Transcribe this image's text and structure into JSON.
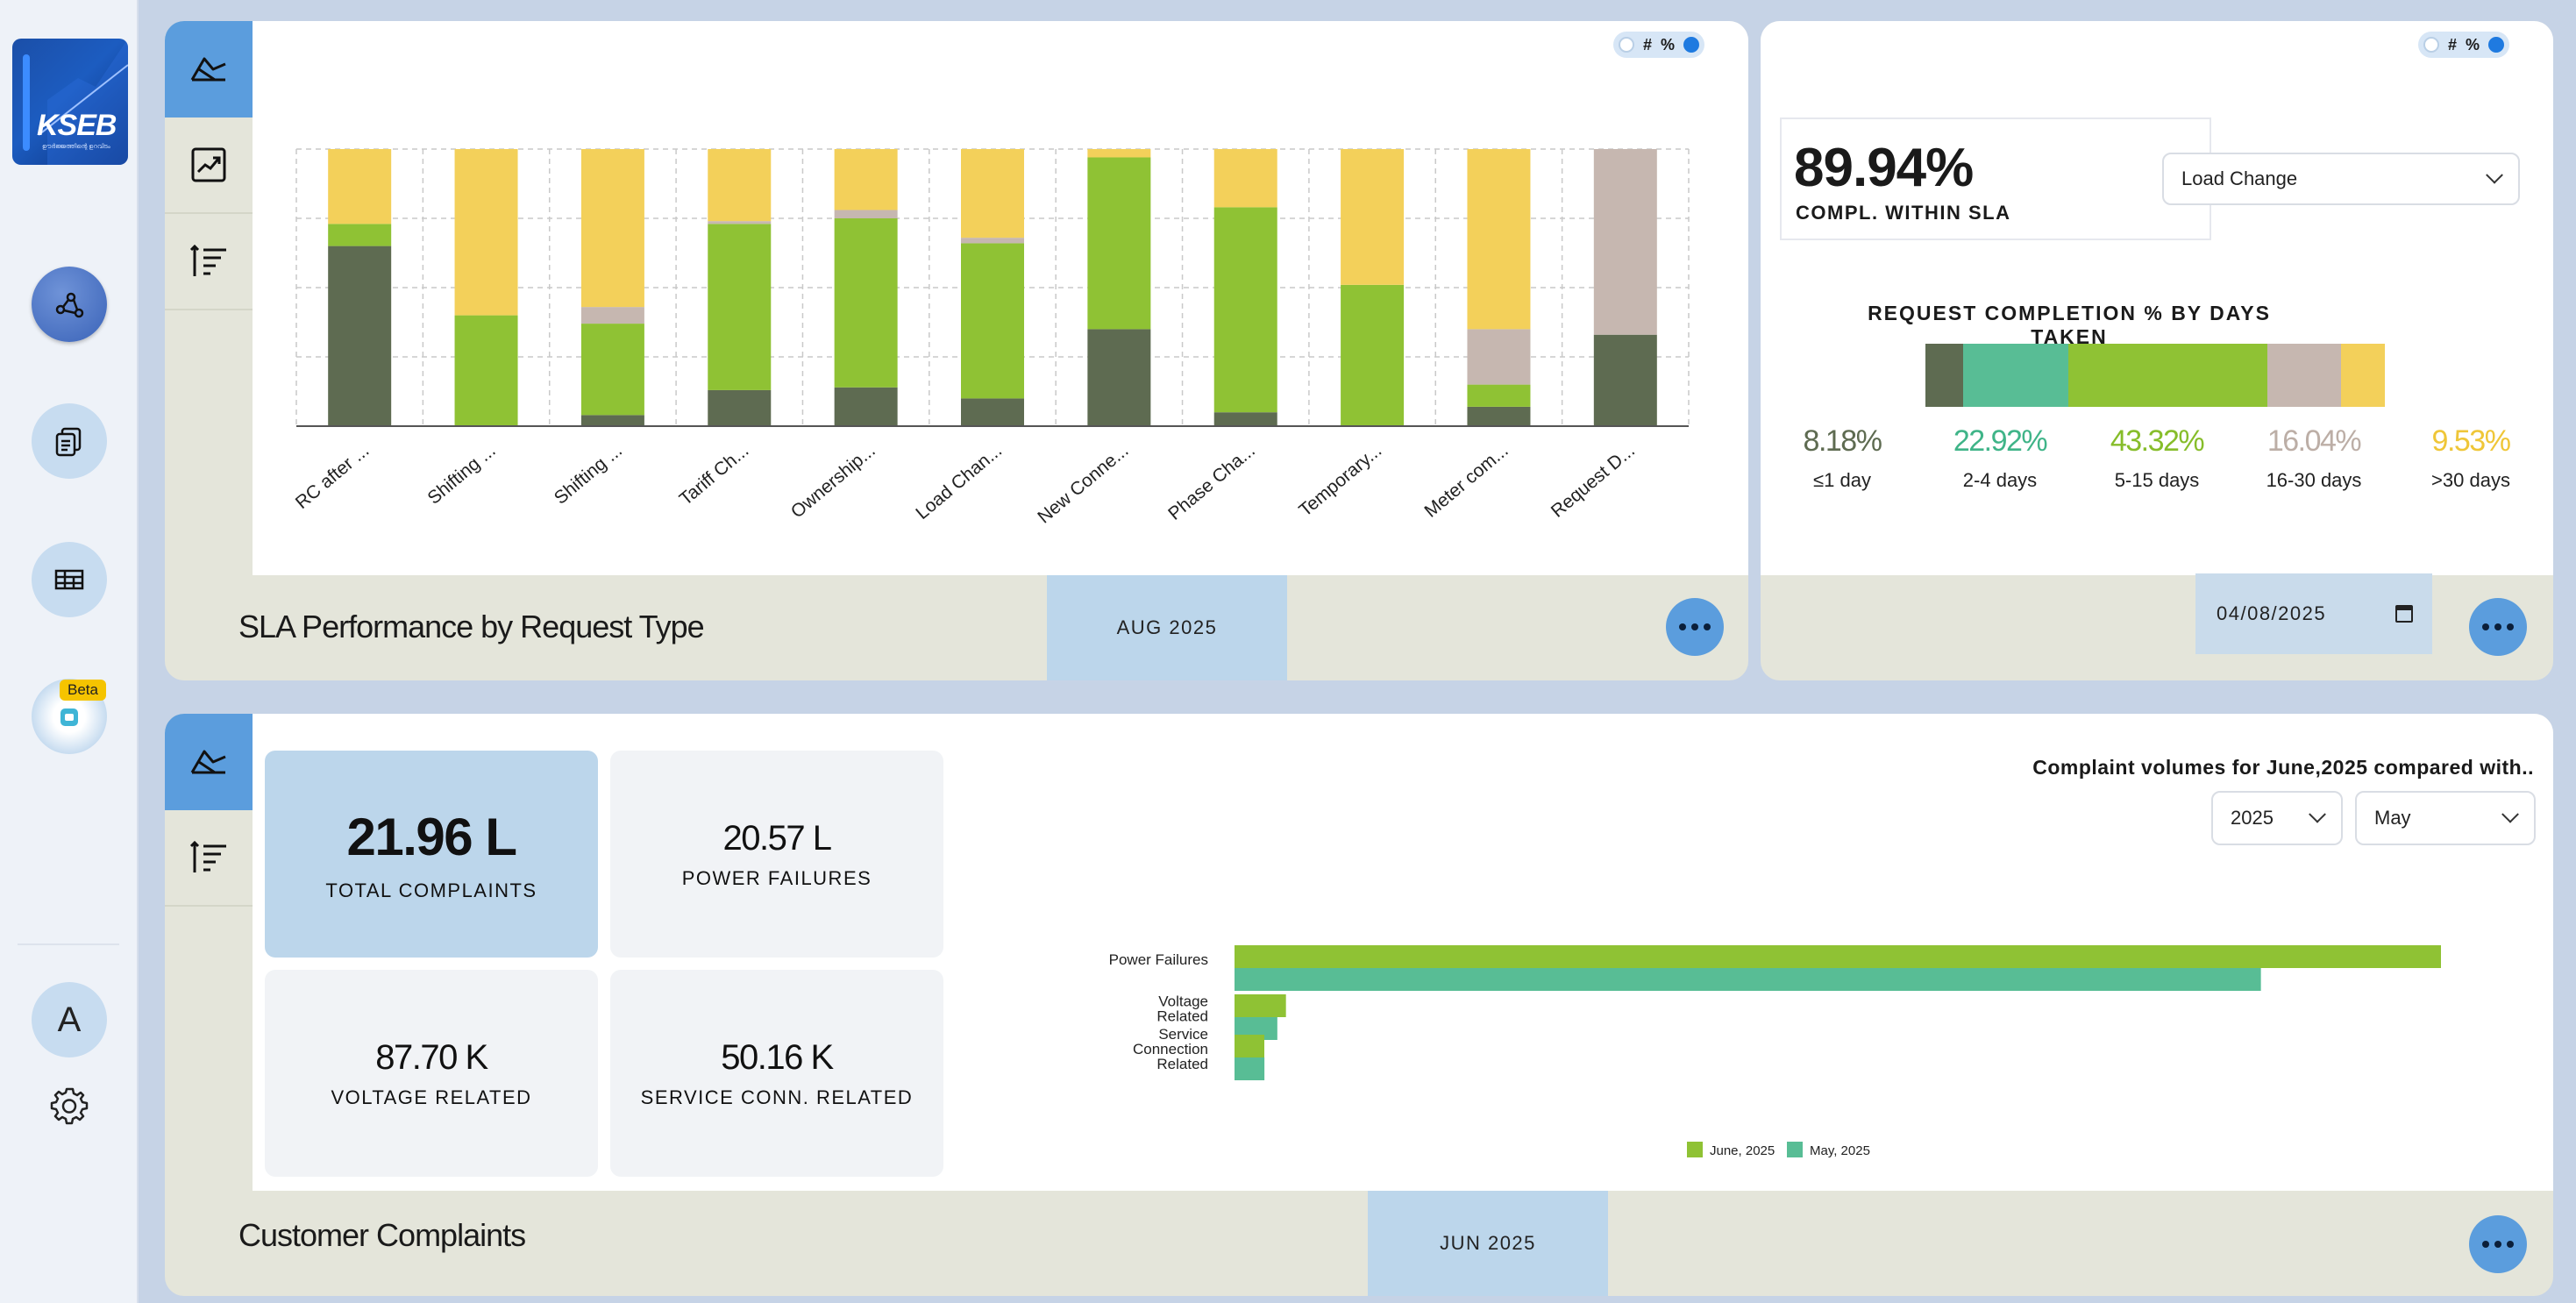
{
  "sidebar": {
    "logo_text": "KSEB",
    "logo_subtext": "ഊർജ്ജത്തിന്റെ ഉറവിടം",
    "items": [
      {
        "icon": "workflow-icon",
        "active": true
      },
      {
        "icon": "clipboard-copy-icon",
        "active": false
      },
      {
        "icon": "table-layers-icon",
        "active": false
      },
      {
        "icon": "ai-bot-icon",
        "active": false,
        "badge": "Beta"
      }
    ],
    "avatar_initial": "A",
    "settings_icon": "gear-icon"
  },
  "sla_request_type": {
    "title": "SLA Performance by Request Type",
    "period": "AUG 2025",
    "toggle": {
      "left": "#",
      "right": "%",
      "selected": "%"
    },
    "tools": [
      "chart-type-icon",
      "trend-icon",
      "sort-list-icon"
    ]
  },
  "sla_completion": {
    "value": "89.94%",
    "label": "COMPL. WITHIN SLA",
    "request_type_select": "Load Change",
    "toggle": {
      "left": "#",
      "right": "%",
      "selected": "%"
    },
    "days_title": "REQUEST COMPLETION % BY DAYS TAKEN",
    "buckets": [
      {
        "pct": "8.18%",
        "label": "≤1 day",
        "value": 8.18,
        "color": "#5e6b51"
      },
      {
        "pct": "22.92%",
        "label": "2-4 days",
        "value": 22.92,
        "color": "#58bd95"
      },
      {
        "pct": "43.32%",
        "label": "5-15 days",
        "value": 43.32,
        "color": "#8fc234"
      },
      {
        "pct": "16.04%",
        "label": "16-30 days",
        "value": 16.04,
        "color": "#c6b7b0"
      },
      {
        "pct": "9.53%",
        "label": ">30 days",
        "value": 9.53,
        "color": "#f3d05a"
      }
    ],
    "date": "04/08/2025"
  },
  "complaints": {
    "title": "Customer Complaints",
    "period": "JUN 2025",
    "tools": [
      "chart-type-icon",
      "sort-list-icon"
    ],
    "kpis": {
      "total": {
        "value": "21.96 L",
        "caption": "TOTAL COMPLAINTS"
      },
      "power": {
        "value": "20.57 L",
        "caption": "POWER FAILURES"
      },
      "voltage": {
        "value": "87.70 K",
        "caption": "VOLTAGE RELATED"
      },
      "service": {
        "value": "50.16 K",
        "caption": "SERVICE CONN. RELATED"
      }
    },
    "compare_title": "Complaint volumes for June,2025 compared with..",
    "year_select": "2025",
    "month_select": "May"
  },
  "chart_data": [
    {
      "type": "bar",
      "stacked": true,
      "percent": true,
      "categories": [
        "RC after ...",
        "Shifting ...",
        "Shifting ...",
        "Tariff Ch...",
        "Ownership...",
        "Load Chan...",
        "New Conne...",
        "Phase Cha...",
        "Temporary...",
        "Meter com...",
        "Request D..."
      ],
      "series": [
        {
          "color": "#5e6b51",
          "values": [
            65,
            0,
            4,
            13,
            14,
            10,
            35,
            5,
            0,
            7,
            33
          ]
        },
        {
          "color": "#8fc234",
          "values": [
            8,
            40,
            33,
            60,
            61,
            56,
            62,
            74,
            51,
            8,
            0
          ]
        },
        {
          "color": "#c6b7b0",
          "values": [
            0,
            0,
            6,
            1,
            3,
            2,
            0,
            0,
            0,
            20,
            67
          ]
        },
        {
          "color": "#f3d05a",
          "values": [
            27,
            60,
            57,
            26,
            22,
            32,
            3,
            21,
            49,
            65,
            0
          ]
        }
      ],
      "ylim": [
        0,
        100
      ],
      "grid": true
    },
    {
      "type": "bar",
      "orientation": "horizontal",
      "categories": [
        "Power Failures",
        "Voltage Related",
        "Service Connection Related"
      ],
      "series": [
        {
          "name": "June, 2025",
          "color": "#8fc234",
          "values": [
            20.57,
            0.877,
            0.5016
          ]
        },
        {
          "name": "May, 2025",
          "color": "#58bd95",
          "values": [
            17.5,
            0.73,
            0.51
          ]
        }
      ],
      "legend": "bottom",
      "unit": "L"
    }
  ]
}
